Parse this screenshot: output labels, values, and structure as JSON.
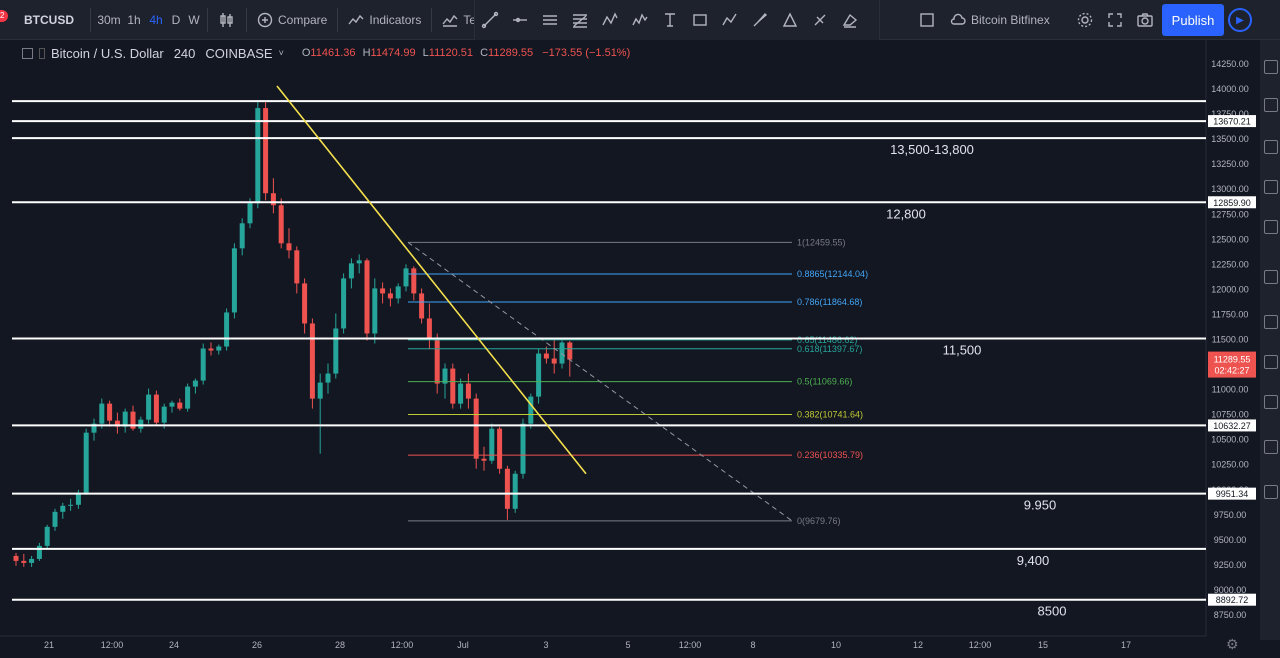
{
  "toolbar": {
    "symbol": "BTCUSD",
    "intervals": [
      "30m",
      "1h",
      "4h",
      "D",
      "W"
    ],
    "active_interval": "4h",
    "compare_label": "Compare",
    "indicators_label": "Indicators",
    "templates_label": "Te",
    "datasource_label": "Bitcoin Bitfinex",
    "publish_label": "Publish",
    "notification_badge": "2"
  },
  "legend": {
    "title": "Bitcoin / U.S. Dollar",
    "interval": "240",
    "exchange": "COINBASE",
    "open": "11461.36",
    "high": "11474.99",
    "low": "11120.51",
    "close": "11289.55",
    "change": "−173.55 (−1.51%)"
  },
  "colors": {
    "background": "#131722",
    "toolbar": "#1e222d",
    "up": "#26a69a",
    "down": "#ef5350",
    "trendline": "#f4e04d",
    "publish": "#2962ff",
    "price_tag": "#ef5350"
  },
  "chart_data": {
    "type": "candlestick",
    "symbol": "BTCUSD",
    "y_ticks": [
      "14250.00",
      "14000.00",
      "13750.00",
      "13500.00",
      "13250.00",
      "13000.00",
      "12750.00",
      "12500.00",
      "12250.00",
      "12000.00",
      "11750.00",
      "11500.00",
      "11250.00",
      "11000.00",
      "10750.00",
      "10500.00",
      "10250.00",
      "10000.00",
      "9750.00",
      "9500.00",
      "9250.00",
      "9000.00",
      "8750.00"
    ],
    "x_ticks": [
      "21",
      "12:00",
      "24",
      "26",
      "28",
      "12:00",
      "Jul",
      "3",
      "5",
      "12:00",
      "8",
      "10",
      "12",
      "12:00",
      "15",
      "17"
    ],
    "ylim": [
      8700,
      14350
    ],
    "current_price": "11289.55",
    "countdown": "02:42:27",
    "horizontal_levels": [
      {
        "price": 13870,
        "label": "",
        "tag": ""
      },
      {
        "price": 13670.21,
        "label": "",
        "tag": "13670.21"
      },
      {
        "price": 13500,
        "label": "13,500-13,800",
        "tag": ""
      },
      {
        "price": 12859.9,
        "label": "12,800",
        "tag": "12859.90"
      },
      {
        "price": 11500,
        "label": "11,500",
        "tag": ""
      },
      {
        "price": 10632.27,
        "label": "",
        "tag": "10632.27"
      },
      {
        "price": 9951.34,
        "label": "9.950",
        "tag": "9951.34"
      },
      {
        "price": 9400,
        "label": "9,400",
        "tag": ""
      },
      {
        "price": 8892.72,
        "label": "8500",
        "tag": "8892.72"
      }
    ],
    "fib_levels": [
      {
        "label": "1(12459.55)",
        "price": 12459.55,
        "color": "#787b86"
      },
      {
        "label": "0.8865(12144.04)",
        "price": 12144.04,
        "color": "#42a5f5"
      },
      {
        "label": "0.786(11864.68)",
        "price": 11864.68,
        "color": "#42a5f5"
      },
      {
        "label": "0.65(11486.62)",
        "price": 11486.62,
        "color": "#26a69a"
      },
      {
        "label": "0.618(11397.67)",
        "price": 11397.67,
        "color": "#26a69a"
      },
      {
        "label": "0.5(11069.66)",
        "price": 11069.66,
        "color": "#4caf50"
      },
      {
        "label": "0.382(10741.64)",
        "price": 10741.64,
        "color": "#c0ca33"
      },
      {
        "label": "0.236(10335.79)",
        "price": 10335.79,
        "color": "#ef5350"
      },
      {
        "label": "0(9679.76)",
        "price": 9679.76,
        "color": "#787b86"
      }
    ],
    "candles": [
      [
        9330,
        9360,
        9230,
        9280
      ],
      [
        9280,
        9350,
        9220,
        9260
      ],
      [
        9260,
        9330,
        9220,
        9300
      ],
      [
        9300,
        9460,
        9280,
        9430
      ],
      [
        9430,
        9640,
        9400,
        9620
      ],
      [
        9620,
        9800,
        9580,
        9770
      ],
      [
        9770,
        9860,
        9700,
        9830
      ],
      [
        9830,
        9900,
        9780,
        9840
      ],
      [
        9840,
        9990,
        9800,
        9960
      ],
      [
        9960,
        10600,
        9940,
        10560
      ],
      [
        10560,
        10700,
        10480,
        10650
      ],
      [
        10650,
        10900,
        10600,
        10850
      ],
      [
        10850,
        10880,
        10620,
        10680
      ],
      [
        10680,
        10760,
        10550,
        10620
      ],
      [
        10620,
        10800,
        10560,
        10770
      ],
      [
        10770,
        10830,
        10580,
        10600
      ],
      [
        10600,
        10720,
        10560,
        10690
      ],
      [
        10690,
        11000,
        10650,
        10940
      ],
      [
        10940,
        10980,
        10640,
        10660
      ],
      [
        10660,
        10850,
        10600,
        10820
      ],
      [
        10820,
        10880,
        10760,
        10860
      ],
      [
        10860,
        10900,
        10780,
        10800
      ],
      [
        10800,
        11050,
        10770,
        11020
      ],
      [
        11020,
        11100,
        10950,
        11080
      ],
      [
        11080,
        11450,
        11040,
        11400
      ],
      [
        11400,
        11460,
        11330,
        11380
      ],
      [
        11380,
        11440,
        11340,
        11420
      ],
      [
        11420,
        11800,
        11380,
        11760
      ],
      [
        11760,
        12450,
        11700,
        12400
      ],
      [
        12400,
        12700,
        12330,
        12650
      ],
      [
        12650,
        12900,
        12600,
        12850
      ],
      [
        12850,
        13880,
        12800,
        13800
      ],
      [
        13800,
        13880,
        12880,
        12950
      ],
      [
        12950,
        13100,
        12750,
        12830
      ],
      [
        12830,
        12900,
        12400,
        12450
      ],
      [
        12450,
        12600,
        12300,
        12380
      ],
      [
        12380,
        12420,
        11950,
        12050
      ],
      [
        12050,
        12100,
        11550,
        11650
      ],
      [
        11650,
        11700,
        10800,
        10900
      ],
      [
        10900,
        11150,
        10350,
        11060
      ],
      [
        11060,
        11250,
        10950,
        11150
      ],
      [
        11150,
        11750,
        11100,
        11600
      ],
      [
        11600,
        12150,
        11550,
        12100
      ],
      [
        12100,
        12300,
        12000,
        12250
      ],
      [
        12250,
        12340,
        12150,
        12280
      ],
      [
        12280,
        12300,
        11480,
        11550
      ],
      [
        11550,
        12100,
        11450,
        12000
      ],
      [
        12000,
        12060,
        11850,
        11950
      ],
      [
        11950,
        12000,
        11820,
        11900
      ],
      [
        11900,
        12050,
        11850,
        12020
      ],
      [
        12020,
        12240,
        11970,
        12200
      ],
      [
        12200,
        12220,
        11880,
        11950
      ],
      [
        11950,
        12000,
        11650,
        11700
      ],
      [
        11700,
        11850,
        11400,
        11500
      ],
      [
        11500,
        11550,
        10950,
        11050
      ],
      [
        11050,
        11250,
        10900,
        11200
      ],
      [
        11200,
        11250,
        10800,
        10850
      ],
      [
        10850,
        11100,
        10800,
        11050
      ],
      [
        11050,
        11150,
        10800,
        10900
      ],
      [
        10900,
        10950,
        10200,
        10300
      ],
      [
        10300,
        10420,
        10180,
        10280
      ],
      [
        10280,
        10650,
        10250,
        10600
      ],
      [
        10600,
        10620,
        10150,
        10200
      ],
      [
        10200,
        10230,
        9690,
        9800
      ],
      [
        9800,
        10180,
        9760,
        10150
      ],
      [
        10150,
        10700,
        10100,
        10650
      ],
      [
        10650,
        10950,
        10600,
        10920
      ],
      [
        10920,
        11400,
        10850,
        11350
      ],
      [
        11350,
        11420,
        11250,
        11300
      ],
      [
        11300,
        11500,
        11150,
        11250
      ],
      [
        11250,
        11480,
        11200,
        11460
      ],
      [
        11460,
        11475,
        11120,
        11290
      ]
    ]
  }
}
